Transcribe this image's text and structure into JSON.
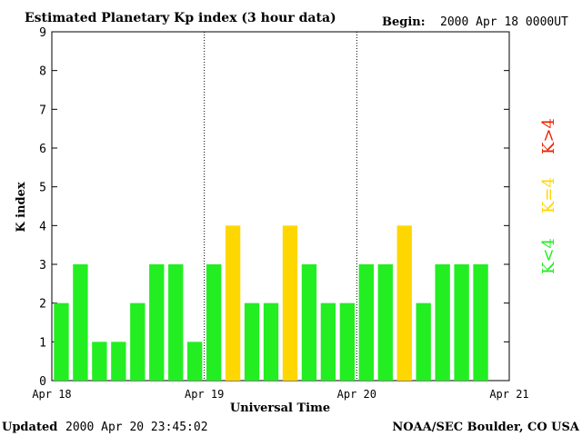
{
  "header": {
    "title": "Estimated Planetary Kp index (3 hour data)",
    "begin_label": "Begin:",
    "begin_value": "2000 Apr 18 0000UT"
  },
  "footer": {
    "updated_label": "Updated",
    "updated_value": "2000 Apr 20 23:45:02",
    "source": "NOAA/SEC Boulder, CO USA"
  },
  "legend": [
    {
      "label": "K<4",
      "color": "#22ee22"
    },
    {
      "label": "K=4",
      "color": "#ffd700"
    },
    {
      "label": "K>4",
      "color": "#ee2200"
    }
  ],
  "colors": {
    "low": "#22ee22",
    "equal": "#ffd700",
    "high": "#ee2200"
  },
  "chart_data": {
    "type": "bar",
    "title": "Estimated Planetary Kp index (3 hour data)",
    "xlabel": "Universal Time",
    "ylabel": "K index",
    "ylim": [
      0,
      9
    ],
    "yticks": [
      "0",
      "1",
      "2",
      "3",
      "4",
      "5",
      "6",
      "7",
      "8",
      "9"
    ],
    "xticks": [
      "Apr 18",
      "Apr 19",
      "Apr 20",
      "Apr 21"
    ],
    "day_separators": true,
    "values": [
      2,
      3,
      1,
      1,
      2,
      3,
      3,
      1,
      3,
      4,
      2,
      2,
      4,
      3,
      2,
      2,
      3,
      3,
      4,
      2,
      3,
      3,
      3
    ]
  }
}
